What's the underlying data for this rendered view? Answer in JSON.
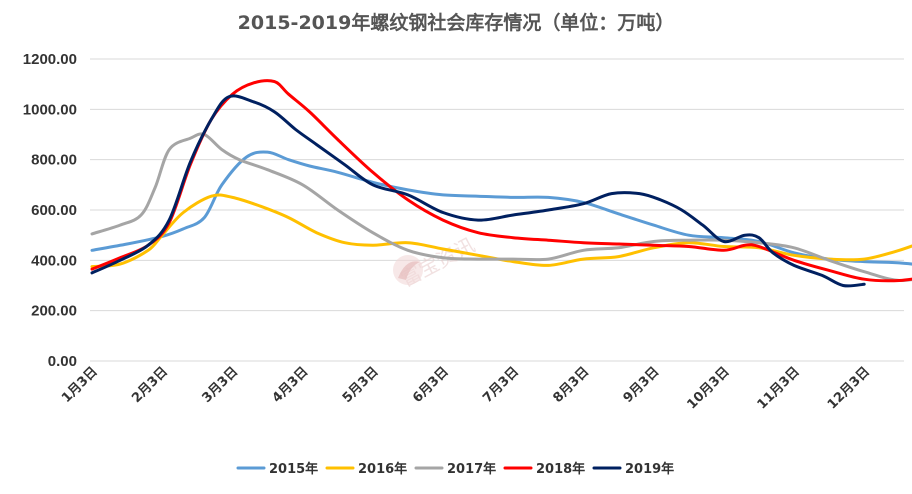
{
  "chart_data": {
    "type": "line",
    "title": "2015-2019年螺纹钢社会库存情况（单位：万吨）",
    "ylim": [
      0,
      1200
    ],
    "yticks": [
      "0.00",
      "200.00",
      "400.00",
      "600.00",
      "800.00",
      "1000.00",
      "1200.00"
    ],
    "ytick_values": [
      0,
      200,
      400,
      600,
      800,
      1000,
      1200
    ],
    "xlim": [
      0,
      12
    ],
    "categories": [
      "1月3日",
      "2月3日",
      "3月3日",
      "4月3日",
      "5月3日",
      "6月3日",
      "7月3日",
      "8月3日",
      "9月3日",
      "10月3日",
      "11月3日",
      "12月3日"
    ],
    "grid": true,
    "legend_position": "bottom",
    "watermark": "富宝资讯",
    "series": [
      {
        "name": "2015年",
        "color": "#5b9bd5",
        "x": [
          0,
          0.5,
          1.0,
          1.3,
          1.6,
          1.85,
          2.2,
          2.5,
          2.8,
          3.1,
          3.5,
          4.0,
          4.5,
          5.0,
          5.5,
          6.0,
          6.5,
          7.0,
          7.5,
          8.0,
          8.5,
          9.0,
          9.5,
          10.0,
          10.5,
          11.0,
          11.5,
          12.0
        ],
        "y": [
          440,
          465,
          495,
          525,
          570,
          700,
          810,
          830,
          800,
          775,
          750,
          710,
          680,
          660,
          655,
          650,
          650,
          630,
          585,
          540,
          500,
          490,
          475,
          430,
          405,
          395,
          390,
          375
        ]
      },
      {
        "name": "2016年",
        "color": "#ffc000",
        "x": [
          0,
          0.4,
          0.8,
          1.0,
          1.3,
          1.7,
          2.0,
          2.4,
          2.8,
          3.2,
          3.6,
          4.0,
          4.5,
          5.0,
          5.5,
          6.0,
          6.5,
          7.0,
          7.5,
          8.0,
          8.5,
          9.0,
          9.5,
          10.0,
          10.5,
          11.0,
          11.5,
          12.0
        ],
        "y": [
          375,
          385,
          440,
          500,
          590,
          655,
          650,
          615,
          570,
          510,
          470,
          460,
          470,
          445,
          420,
          395,
          380,
          405,
          415,
          450,
          470,
          455,
          450,
          420,
          405,
          405,
          440,
          490
        ]
      },
      {
        "name": "2017年",
        "color": "#a5a5a5",
        "x": [
          0,
          0.4,
          0.7,
          0.9,
          1.1,
          1.4,
          1.6,
          1.85,
          2.1,
          2.5,
          3.0,
          3.5,
          4.0,
          4.5,
          5.0,
          5.5,
          6.0,
          6.5,
          7.0,
          7.5,
          8.0,
          8.5,
          9.0,
          9.5,
          10.0,
          10.5,
          11.0,
          11.5,
          12.0
        ],
        "y": [
          505,
          540,
          580,
          690,
          840,
          885,
          900,
          840,
          800,
          760,
          700,
          600,
          510,
          440,
          410,
          405,
          405,
          405,
          440,
          450,
          475,
          480,
          480,
          470,
          450,
          400,
          355,
          320,
          340
        ]
      },
      {
        "name": "2018年",
        "color": "#ff0000",
        "x": [
          0,
          0.4,
          0.8,
          1.1,
          1.4,
          1.7,
          2.0,
          2.3,
          2.6,
          2.8,
          3.1,
          3.5,
          4.0,
          4.5,
          5.0,
          5.5,
          6.0,
          6.5,
          7.0,
          7.5,
          8.0,
          8.5,
          9.0,
          9.3,
          9.5,
          10.0,
          10.5,
          11.0,
          11.5,
          12.0
        ],
        "y": [
          365,
          410,
          460,
          550,
          780,
          960,
          1060,
          1105,
          1110,
          1060,
          990,
          880,
          750,
          640,
          560,
          510,
          490,
          480,
          470,
          465,
          460,
          455,
          440,
          460,
          455,
          400,
          360,
          325,
          320,
          340
        ]
      },
      {
        "name": "2019年",
        "color": "#002060",
        "x": [
          0,
          0.4,
          0.8,
          1.1,
          1.4,
          1.7,
          1.95,
          2.3,
          2.6,
          2.9,
          3.2,
          3.6,
          4.0,
          4.5,
          5.0,
          5.5,
          6.0,
          6.5,
          7.0,
          7.4,
          7.8,
          8.1,
          8.4,
          8.7,
          9.0,
          9.3,
          9.5,
          9.7,
          10.0,
          10.4,
          10.7,
          11.0
        ],
        "y": [
          350,
          400,
          460,
          560,
          790,
          960,
          1050,
          1030,
          990,
          920,
          860,
          780,
          700,
          660,
          590,
          560,
          580,
          600,
          625,
          665,
          665,
          640,
          600,
          540,
          475,
          500,
          490,
          430,
          380,
          340,
          300,
          305
        ]
      }
    ]
  }
}
